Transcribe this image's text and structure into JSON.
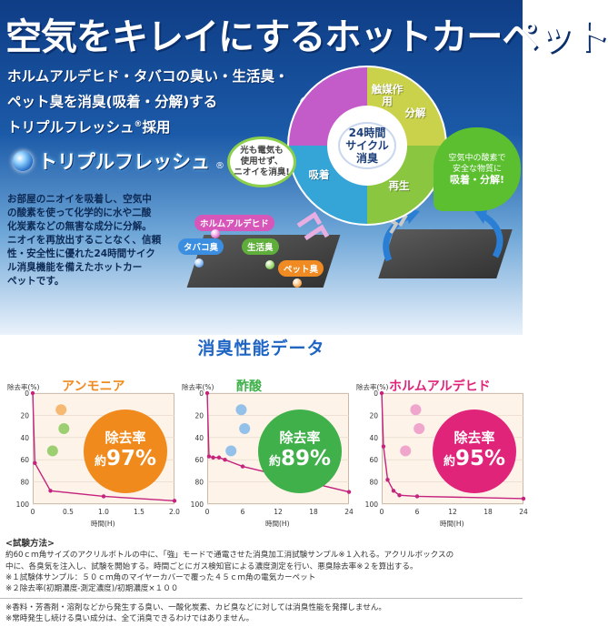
{
  "headline": "空気をキレイにするホットカーペット",
  "lead": [
    "ホルムアルデヒド・タバコの臭い・生活臭・",
    "ペット臭を消臭(吸着・分解)する",
    "トリプルフレッシュ",
    "®",
    "採用"
  ],
  "brand": {
    "name": "トリプルフレッシュ",
    "reg": "®"
  },
  "description": [
    "お部屋のニオイを吸着し、空気中",
    "の酸素を使って化学的に水や二酸",
    "化炭素などの無害な成分に分解。",
    "ニオイを再放出することなく、信頼",
    "性・安全性に優れた24時間サイク",
    "ル消臭機能を備えたホットカー",
    "ペットです。"
  ],
  "cycle": {
    "center": [
      "24時間",
      "サイクル",
      "消臭"
    ],
    "segments": [
      {
        "label": "触媒作用",
        "color": "#c9d24a"
      },
      {
        "label": "分解",
        "color": "#8ac640"
      },
      {
        "label": "再生",
        "color": "#35a5d8"
      },
      {
        "label": "吸着",
        "color": "#c35bc9"
      }
    ]
  },
  "bubble_left": [
    "光も電気も",
    "使用せず、",
    "ニオイを消臭!"
  ],
  "bubble_right": [
    "空気中の酸素で",
    "安全な物質に",
    "吸着・分解!"
  ],
  "odor_tags": [
    {
      "label": "ホルムアルデヒド",
      "color": "#d756b9"
    },
    {
      "label": "タバコ臭",
      "color": "#3b8ee0"
    },
    {
      "label": "生活臭",
      "color": "#5fae3b"
    },
    {
      "label": "ペット臭",
      "color": "#ef8b22"
    }
  ],
  "section_title": "消臭性能データ",
  "charts": [
    {
      "name": "アンモニア",
      "color": "#f08a1c",
      "rate_label": "除去率",
      "rate_prefix": "約",
      "rate": "97",
      "unit": "%",
      "ylabel": "除去率(%)",
      "xlabel": "時間(H)",
      "x": [
        0,
        0.03,
        0.25,
        1.0,
        2.0
      ],
      "y": [
        0,
        63,
        88,
        93,
        97
      ],
      "xticks": [
        "0",
        "0.5",
        "1.0",
        "1.5",
        "2.0"
      ],
      "xmax": 2.0,
      "xtick_vals": [
        0,
        0.5,
        1.0,
        1.5,
        2.0
      ],
      "yticks": [
        "0",
        "20",
        "40",
        "60",
        "80",
        "100"
      ]
    },
    {
      "name": "酢酸",
      "color": "#3fb04a",
      "rate_label": "除去率",
      "rate_prefix": "約",
      "rate": "89",
      "unit": "%",
      "ylabel": "除去率(%)",
      "xlabel": "時間(H)",
      "x": [
        0,
        0.3,
        1,
        2,
        3,
        6,
        24
      ],
      "y": [
        0,
        57,
        58,
        58,
        60,
        66,
        89
      ],
      "xticks": [
        "0",
        "6",
        "12",
        "18",
        "24"
      ],
      "xmax": 24,
      "xtick_vals": [
        0,
        6,
        12,
        18,
        24
      ],
      "yticks": [
        "0",
        "20",
        "40",
        "60",
        "80",
        "100"
      ]
    },
    {
      "name": "ホルムアルデヒド",
      "color": "#e0247a",
      "rate_label": "除去率",
      "rate_prefix": "約",
      "rate": "95",
      "unit": "%",
      "ylabel": "除去率(%)",
      "xlabel": "時間(H)",
      "x": [
        0,
        0.3,
        1,
        2,
        3,
        6,
        24
      ],
      "y": [
        0,
        48,
        78,
        88,
        92,
        93,
        95
      ],
      "xticks": [
        "0",
        "6",
        "12",
        "18",
        "24"
      ],
      "xmax": 24,
      "xtick_vals": [
        0,
        6,
        12,
        18,
        24
      ],
      "yticks": [
        "0",
        "20",
        "40",
        "60",
        "80",
        "100"
      ]
    }
  ],
  "notes": {
    "heading": "<試験方法>",
    "lines": [
      "約60ｃｍ角サイズのアクリルボトルの中に、「強」モードで通電させた消臭加工消試験サンプル※１入れる。アクリルボックスの",
      "中に、各臭気を注入し、試験を開始する。時間ごとにガス検知官による濃度測定を行い、悪臭除去率※２を算出する。",
      "※１試験体サンプル：５０ｃｍ角のマイヤーカバーで覆った４５ｃｍ角の電気カーペット",
      "※２除去率(初期濃度-測定濃度)/初期濃度×１００"
    ],
    "footer": [
      "※香料・芳香剤・溶剤などから発生する臭い、一酸化炭素、カビ臭などに対しては消臭性能を発揮しません。",
      "※常時発生し続ける臭い成分は、全て消臭できるわけではありません。"
    ]
  }
}
